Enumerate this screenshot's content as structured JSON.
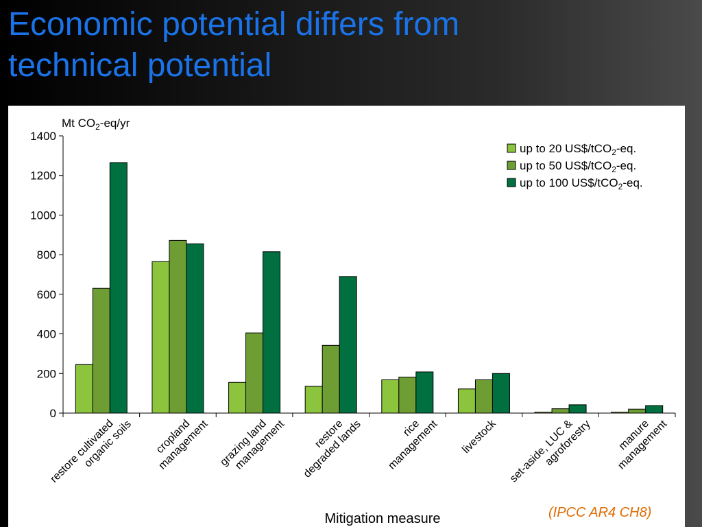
{
  "slide": {
    "title_line1": "Economic potential differs from",
    "title_line2": "technical potential",
    "source": "(IPCC AR4 CH8)"
  },
  "chart_data": {
    "type": "bar",
    "title": "",
    "ylabel_main": "Mt CO",
    "ylabel_sub": "2",
    "ylabel_tail": "-eq/yr",
    "xlabel": "Mitigation measure",
    "ylim": [
      0,
      1400
    ],
    "yticks": [
      0,
      200,
      400,
      600,
      800,
      1000,
      1200,
      1400
    ],
    "grid": false,
    "legend_position": "top-right",
    "categories": [
      [
        "restore cultivated",
        "organic soils"
      ],
      [
        "cropland",
        "management"
      ],
      [
        "grazing land",
        "management"
      ],
      [
        "restore",
        "degraded lands"
      ],
      [
        "rice",
        "management"
      ],
      [
        "livestock"
      ],
      [
        "set-aside, LUC &",
        "agroforestry"
      ],
      [
        "manure",
        "management"
      ]
    ],
    "series": [
      {
        "name_main": "up to 20 US$/tCO",
        "name_sub": "2",
        "name_tail": "-eq.",
        "color": "#8cc43e",
        "values": [
          245,
          765,
          155,
          135,
          168,
          122,
          5,
          5
        ]
      },
      {
        "name_main": "up to 50 US$/tCO",
        "name_sub": "2",
        "name_tail": "-eq.",
        "color": "#6e9e33",
        "values": [
          630,
          872,
          405,
          342,
          182,
          168,
          22,
          20
        ]
      },
      {
        "name_main": "up to 100 US$/tCO",
        "name_sub": "2",
        "name_tail": "-eq.",
        "color": "#007040",
        "values": [
          1265,
          855,
          815,
          690,
          208,
          200,
          42,
          38
        ]
      }
    ]
  }
}
